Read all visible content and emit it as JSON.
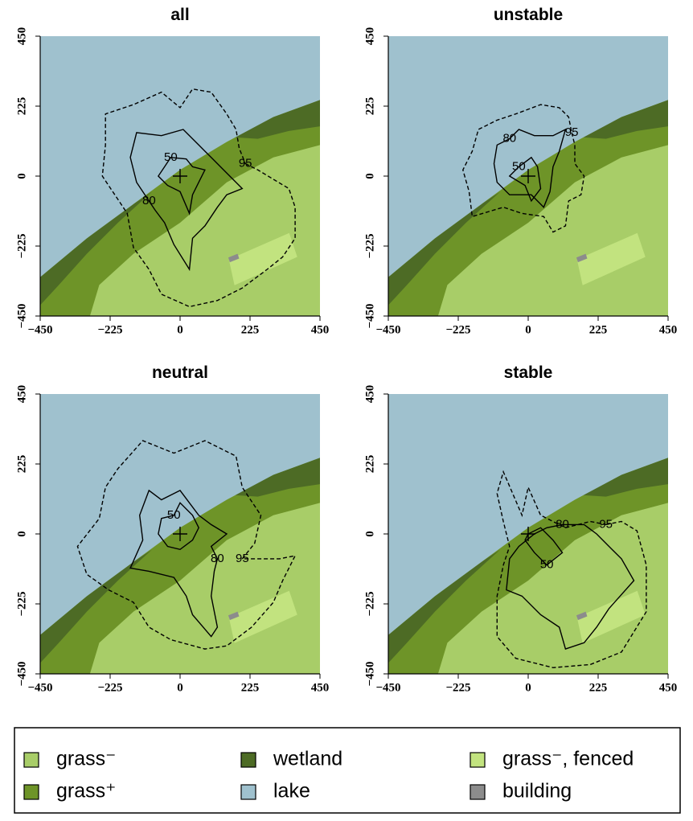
{
  "chart_data": [
    {
      "type": "contour",
      "title": "all",
      "xlim": [
        -450,
        450
      ],
      "ylim": [
        -450,
        450
      ],
      "xticks": [
        {
          "value": -450,
          "label": "−450"
        },
        {
          "value": -225,
          "label": "−225"
        },
        0,
        225,
        450
      ],
      "yticks": [
        {
          "value": -450,
          "label": "−450"
        },
        {
          "value": -225,
          "label": "−225"
        },
        0,
        225,
        450
      ],
      "series": [
        {
          "name": "50",
          "style": "solid",
          "x": [
            -30,
            20,
            40,
            80,
            60,
            40,
            30,
            0,
            -40,
            -70,
            -50
          ],
          "y": [
            60,
            55,
            30,
            20,
            -20,
            -60,
            -120,
            -50,
            -30,
            0,
            30
          ]
        },
        {
          "name": "80",
          "style": "solid",
          "x": [
            -100,
            -140,
            -160,
            -140,
            -60,
            10,
            60,
            100,
            140,
            200,
            150,
            120,
            80,
            40,
            30,
            -20,
            -50,
            -80
          ],
          "y": [
            -80,
            -20,
            60,
            140,
            130,
            150,
            100,
            60,
            20,
            -40,
            -60,
            -100,
            -160,
            -200,
            -300,
            -220,
            -150,
            -110
          ]
        },
        {
          "name": "95",
          "style": "dashed",
          "x": [
            210,
            250,
            300,
            350,
            370,
            370,
            330,
            280,
            200,
            120,
            30,
            -60,
            -100,
            -150,
            -170,
            -210,
            -250,
            -240,
            -240,
            -150,
            -60,
            0,
            40,
            100,
            150,
            180,
            190
          ],
          "y": [
            40,
            20,
            -10,
            -40,
            -100,
            -200,
            -260,
            -300,
            -360,
            -400,
            -420,
            -380,
            -300,
            -230,
            -120,
            -60,
            0,
            100,
            200,
            230,
            270,
            220,
            280,
            270,
            200,
            150,
            90
          ]
        }
      ]
    },
    {
      "type": "contour",
      "title": "unstable",
      "xlim": [
        -450,
        450
      ],
      "ylim": [
        -450,
        450
      ],
      "xticks": [
        {
          "value": -450,
          "label": "−450"
        },
        {
          "value": -225,
          "label": "−225"
        },
        0,
        225,
        450
      ],
      "yticks": [
        {
          "value": -450,
          "label": "−450"
        },
        {
          "value": -225,
          "label": "−225"
        },
        0,
        225,
        450
      ],
      "series": [
        {
          "name": "50",
          "style": "solid",
          "x": [
            -30,
            10,
            30,
            40,
            10,
            -10,
            -60
          ],
          "y": [
            30,
            60,
            30,
            -40,
            -80,
            -30,
            0
          ]
        },
        {
          "name": "80",
          "style": "solid",
          "x": [
            -60,
            -100,
            -110,
            -100,
            -60,
            10,
            50,
            70,
            80,
            100,
            120,
            80,
            20,
            -30
          ],
          "y": [
            120,
            100,
            40,
            -20,
            -60,
            -60,
            -100,
            -50,
            30,
            80,
            150,
            130,
            130,
            150
          ]
        },
        {
          "name": "95",
          "style": "dashed",
          "x": [
            140,
            150,
            150,
            180,
            170,
            130,
            120,
            80,
            50,
            -20,
            -80,
            -180,
            -190,
            -210,
            -180,
            -160,
            -100,
            -40,
            40,
            100,
            130
          ],
          "y": [
            140,
            100,
            40,
            0,
            -60,
            -80,
            -160,
            -180,
            -130,
            -120,
            -100,
            -130,
            -50,
            20,
            80,
            150,
            180,
            200,
            230,
            220,
            190
          ]
        }
      ]
    },
    {
      "type": "contour",
      "title": "neutral",
      "xlim": [
        -450,
        450
      ],
      "ylim": [
        -450,
        450
      ],
      "xticks": [
        {
          "value": -450,
          "label": "−450"
        },
        {
          "value": -225,
          "label": "−225"
        },
        0,
        225,
        450
      ],
      "yticks": [
        {
          "value": -450,
          "label": "−450"
        },
        {
          "value": -225,
          "label": "−225"
        },
        0,
        225,
        450
      ],
      "series": [
        {
          "name": "50",
          "style": "solid",
          "x": [
            -20,
            -60,
            -70,
            -40,
            0,
            40,
            60,
            40,
            0
          ],
          "y": [
            60,
            50,
            0,
            -40,
            -50,
            -20,
            20,
            60,
            100
          ]
        },
        {
          "name": "80",
          "style": "solid",
          "x": [
            120,
            100,
            150,
            100,
            60,
            0,
            -60,
            -100,
            -130,
            -120,
            -160,
            -100,
            -20,
            20,
            40,
            100,
            120,
            100,
            110
          ],
          "y": [
            -80,
            -40,
            0,
            30,
            60,
            140,
            110,
            140,
            60,
            -20,
            -110,
            -120,
            -140,
            -200,
            -260,
            -330,
            -300,
            -200,
            -120
          ]
        },
        {
          "name": "95",
          "style": "dashed",
          "x": [
            200,
            240,
            260,
            200,
            180,
            80,
            -20,
            -120,
            -200,
            -240,
            -260,
            -330,
            -300,
            -230,
            -150,
            -100,
            -30,
            80,
            150,
            230,
            300,
            330,
            370,
            320
          ],
          "y": [
            -80,
            -30,
            60,
            150,
            250,
            300,
            260,
            300,
            210,
            150,
            50,
            -40,
            -130,
            -180,
            -220,
            -300,
            -340,
            -370,
            -360,
            -300,
            -220,
            -150,
            -70,
            -80
          ]
        }
      ]
    },
    {
      "type": "contour",
      "title": "stable",
      "xlim": [
        -450,
        450
      ],
      "ylim": [
        -450,
        450
      ],
      "xticks": [
        {
          "value": -450,
          "label": "−450"
        },
        {
          "value": -225,
          "label": "−225"
        },
        0,
        225,
        450
      ],
      "yticks": [
        {
          "value": -450,
          "label": "−450"
        },
        {
          "value": -225,
          "label": "−225"
        },
        0,
        225,
        450
      ],
      "series": [
        {
          "name": "50",
          "style": "solid",
          "x": [
            60,
            20,
            -10,
            0,
            40,
            80,
            110
          ],
          "y": [
            -100,
            -60,
            -20,
            0,
            20,
            -20,
            -60
          ]
        },
        {
          "name": "80",
          "style": "solid",
          "x": [
            110,
            60,
            20,
            -30,
            -60,
            -70,
            -20,
            40,
            100,
            120,
            180,
            220,
            260,
            340,
            300,
            260,
            220,
            180
          ],
          "y": [
            30,
            20,
            0,
            -40,
            -80,
            -180,
            -200,
            -260,
            -300,
            -370,
            -350,
            -300,
            -240,
            -150,
            -80,
            -40,
            0,
            30
          ]
        },
        {
          "name": "95",
          "style": "dashed",
          "x": [
            250,
            300,
            350,
            380,
            380,
            300,
            200,
            80,
            -40,
            -100,
            -100,
            -80,
            -60,
            -80,
            -100,
            -80,
            -20,
            0,
            40,
            120,
            200
          ],
          "y": [
            30,
            40,
            10,
            -100,
            -250,
            -380,
            -420,
            -430,
            -400,
            -330,
            -200,
            -100,
            -40,
            40,
            130,
            200,
            60,
            150,
            60,
            20,
            40
          ]
        }
      ]
    }
  ],
  "legend": [
    {
      "name": "grass⁻",
      "color": "#a8cd68"
    },
    {
      "name": "grass⁺",
      "color": "#6e9428"
    },
    {
      "name": "wetland",
      "color": "#4d6b25"
    },
    {
      "name": "lake",
      "color": "#9fc1ce"
    },
    {
      "name": "grass⁻, fenced",
      "color": "#c2e37f"
    },
    {
      "name": "building",
      "color": "#8c8c8c"
    }
  ]
}
